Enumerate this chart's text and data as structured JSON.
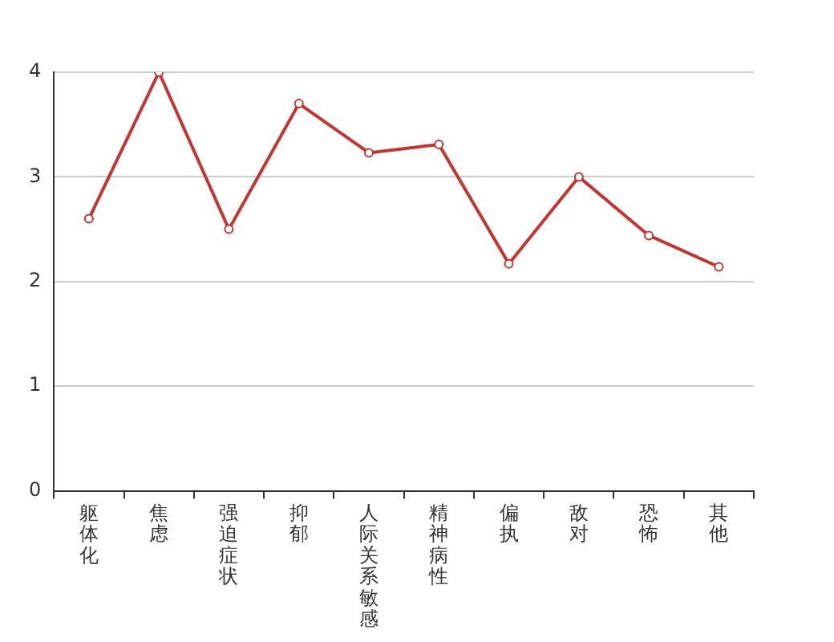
{
  "chart_data": {
    "type": "line",
    "categories": [
      "躯体化",
      "焦虑",
      "强迫症状",
      "抑郁",
      "人际关系敏感",
      "精神病性",
      "偏执",
      "敌对",
      "恐怖",
      "其他"
    ],
    "series": [
      {
        "color": "#c23531",
        "values": [
          2.6,
          4.0,
          2.5,
          3.7,
          3.23,
          3.31,
          2.17,
          3.0,
          2.44,
          2.14
        ]
      }
    ],
    "ylim": [
      0,
      4
    ],
    "yticks": [
      0,
      1,
      2,
      3,
      4
    ],
    "grid": "y",
    "legend": false,
    "marker": "circle",
    "line_style": "solid"
  }
}
